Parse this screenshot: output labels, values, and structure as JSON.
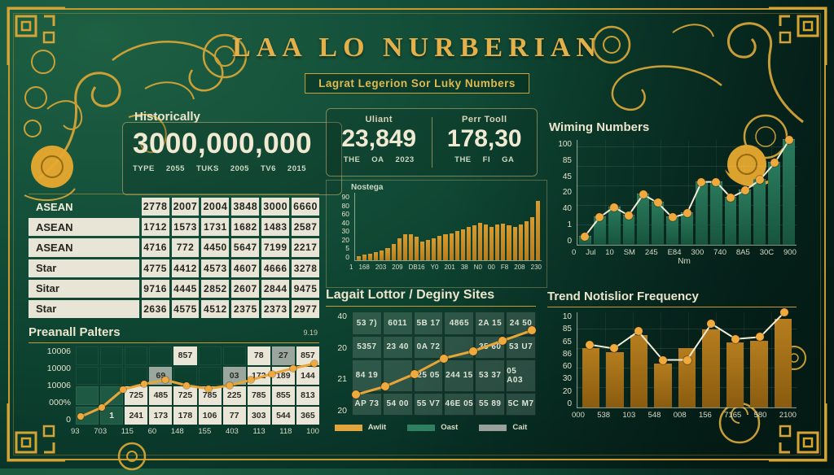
{
  "title": "LAA LO NURBERIAN",
  "subtitle": "Lagrat Legerion Sor Luky Numbers",
  "colors": {
    "background": "#0e3d2c",
    "gold": "#c9992f",
    "cream": "#ece5cc",
    "teal_bar": "#1f6e54",
    "orange_bar": "#cf8e28",
    "brown_bar": "#a8751b",
    "accent_dot": "#efa93d"
  },
  "stats": {
    "historically": {
      "label": "Historically",
      "value": "3000,000,000",
      "sub": [
        "TYPE",
        "2055",
        "TUKS",
        "2005",
        "TV6",
        "2015"
      ]
    },
    "uliant": {
      "label": "Uliant",
      "value": "23,849",
      "sub": [
        "THE",
        "OA",
        "2023"
      ]
    },
    "perr_tooll": {
      "label": "Perr Tooll",
      "value": "178,30",
      "sub": [
        "THE",
        "FI",
        "GA"
      ]
    }
  },
  "left_table": {
    "rows": [
      {
        "label": "ASEAN",
        "values": [
          "2778",
          "2007",
          "2004",
          "3848",
          "3000",
          "6660"
        ]
      },
      {
        "label": "ASEAN",
        "values": [
          "1712",
          "1573",
          "1731",
          "1682",
          "1483",
          "2587"
        ]
      },
      {
        "label": "ASEAN",
        "values": [
          "4716",
          "772",
          "4450",
          "5647",
          "7199",
          "2217"
        ]
      },
      {
        "label": "Star",
        "values": [
          "4775",
          "4412",
          "4573",
          "4607",
          "4666",
          "3278"
        ]
      },
      {
        "label": "Sitar",
        "values": [
          "9716",
          "4445",
          "2852",
          "2607",
          "2844",
          "9475"
        ]
      },
      {
        "label": "Star",
        "values": [
          "2636",
          "4575",
          "4512",
          "2375",
          "2373",
          "2977"
        ]
      }
    ]
  },
  "sections": {
    "preanall": {
      "title": "Preanall Palters",
      "corner_value": "9.19"
    },
    "nostega": {
      "label": "Nostega"
    },
    "lagait": {
      "title": "Lagait Lottor / Deginy Sites"
    },
    "wiming": {
      "title": "Wiming Numbers",
      "axis_label": "Nm"
    },
    "trend": {
      "title": "Trend Notislior Frequency"
    }
  },
  "chart_data": [
    {
      "id": "wiming_numbers",
      "type": "bar+line",
      "title": "Wiming Numbers",
      "y_ticks": [
        "100",
        "85",
        "45",
        "20",
        "40",
        "1",
        "0"
      ],
      "x_ticks": [
        "0",
        "Jul",
        "10",
        "SM",
        "245",
        "E84",
        "300",
        "740",
        "8A5",
        "30C",
        "900"
      ],
      "xlabel": "Nm",
      "ylim": [
        0,
        100
      ],
      "grid": true,
      "legend_position": "none",
      "bars": [
        8,
        26,
        36,
        28,
        48,
        40,
        26,
        30,
        60,
        60,
        45,
        52,
        62,
        78,
        100
      ],
      "line": [
        8,
        26,
        36,
        28,
        48,
        40,
        26,
        30,
        60,
        60,
        45,
        52,
        62,
        78,
        100
      ]
    },
    {
      "id": "nostega",
      "type": "bar",
      "title": "Nostega",
      "y_ticks": [
        "90",
        "80",
        "60",
        "40",
        "30",
        "20",
        "5",
        "0"
      ],
      "x_ticks": [
        "1",
        "168",
        "203",
        "209",
        "DB16",
        "Y0",
        "201",
        "38",
        "N0",
        "00",
        "F8",
        "208",
        "230"
      ],
      "ylim": [
        0,
        100
      ],
      "grid": false,
      "legend_position": "none",
      "bars": [
        6,
        8,
        10,
        12,
        15,
        18,
        24,
        32,
        38,
        39,
        35,
        28,
        30,
        33,
        36,
        39,
        40,
        43,
        46,
        49,
        52,
        55,
        53,
        50,
        53,
        54,
        52,
        50,
        53,
        58,
        64,
        88
      ]
    },
    {
      "id": "trend_notislior_frequency",
      "type": "bar+line",
      "title": "Trend Notislior Frequency",
      "y_ticks": [
        "10",
        "85",
        "65",
        "86",
        "60",
        "30",
        "20",
        "0"
      ],
      "x_ticks": [
        "000",
        "538",
        "103",
        "548",
        "008",
        "156",
        "7165",
        "580",
        "2100"
      ],
      "ylim": [
        0,
        100
      ],
      "grid": true,
      "legend_position": "none",
      "bars": [
        62,
        58,
        76,
        46,
        62,
        82,
        68,
        70,
        93
      ],
      "line": [
        66,
        62,
        80,
        50,
        50,
        88,
        72,
        74,
        100
      ]
    },
    {
      "id": "preanall_palters",
      "type": "table+line",
      "title": "Preanall Palters",
      "y_ticks": [
        "10006",
        "10000",
        "10006",
        "000%",
        "0"
      ],
      "x_ticks": [
        "93",
        "703",
        "115",
        "60",
        "148",
        "155",
        "403",
        "113",
        "118",
        "100"
      ],
      "grid_cells": [
        [
          {
            "t": ""
          },
          {
            "t": ""
          },
          {
            "t": ""
          },
          {
            "t": ""
          },
          {
            "t": "857",
            "bg": "light"
          },
          {
            "t": ""
          },
          {
            "t": ""
          },
          {
            "t": "78",
            "bg": "light"
          },
          {
            "t": "27",
            "bg": "gray"
          },
          {
            "t": "857",
            "bg": "light"
          }
        ],
        [
          {
            "t": ""
          },
          {
            "t": ""
          },
          {
            "t": ""
          },
          {
            "t": "69",
            "bg": "gray"
          },
          {
            "t": ""
          },
          {
            "t": ""
          },
          {
            "t": "03",
            "bg": "gray"
          },
          {
            "t": "172",
            "bg": "light"
          },
          {
            "t": "189",
            "bg": "light"
          },
          {
            "t": "144",
            "bg": "light"
          }
        ],
        [
          {
            "t": "",
            "bg": "green"
          },
          {
            "t": "",
            "bg": "green"
          },
          {
            "t": "725",
            "bg": "light"
          },
          {
            "t": "485",
            "bg": "light"
          },
          {
            "t": "725",
            "bg": "light"
          },
          {
            "t": "785",
            "bg": "light"
          },
          {
            "t": "225",
            "bg": "light"
          },
          {
            "t": "785",
            "bg": "light"
          },
          {
            "t": "855",
            "bg": "light"
          },
          {
            "t": "813",
            "bg": "light"
          }
        ],
        [
          {
            "t": "",
            "bg": "green"
          },
          {
            "t": "1",
            "bg": "green"
          },
          {
            "t": "241",
            "bg": "light"
          },
          {
            "t": "173",
            "bg": "light"
          },
          {
            "t": "178",
            "bg": "light"
          },
          {
            "t": "106",
            "bg": "light"
          },
          {
            "t": "77",
            "bg": "light"
          },
          {
            "t": "303",
            "bg": "light"
          },
          {
            "t": "544",
            "bg": "light"
          },
          {
            "t": "365",
            "bg": "light"
          }
        ]
      ],
      "line": [
        10,
        22,
        45,
        52,
        57,
        50,
        46,
        50,
        57,
        65,
        72,
        78
      ]
    },
    {
      "id": "lagait_lottor_deginy_sites",
      "type": "table+line",
      "title": "Lagait Lottor / Deginy Sites",
      "y_ticks": [
        "40",
        "20",
        "21",
        "20"
      ],
      "grid_cells": [
        [
          {
            "t": "53 7)"
          },
          {
            "t": "6011"
          },
          {
            "t": "5B 17"
          },
          {
            "t": "4865"
          },
          {
            "t": "2A 15"
          },
          {
            "t": "24 50"
          }
        ],
        [
          {
            "t": "5357"
          },
          {
            "t": "23 40"
          },
          {
            "t": "0A 72"
          },
          {
            "t": ""
          },
          {
            "t": "35 60"
          },
          {
            "t": "53 U7"
          }
        ],
        [
          {
            "t": "84 19"
          },
          {
            "t": ""
          },
          {
            "t": "25 05"
          },
          {
            "t": "244 15"
          },
          {
            "t": "53 37"
          },
          {
            "t": "05 A03"
          }
        ],
        [
          {
            "t": "AP 73"
          },
          {
            "t": "54 00"
          },
          {
            "t": "55 V7"
          },
          {
            "t": "46E 05"
          },
          {
            "t": "55 89"
          },
          {
            "t": "5C M7"
          }
        ]
      ],
      "line": [
        20,
        28,
        40,
        55,
        62,
        72,
        82
      ],
      "legend": [
        {
          "label": "Awlit",
          "color": "#e2a53e"
        },
        {
          "label": "Oast",
          "color": "#2e8060"
        },
        {
          "label": "Cait",
          "color": "#98a29b"
        }
      ]
    }
  ]
}
